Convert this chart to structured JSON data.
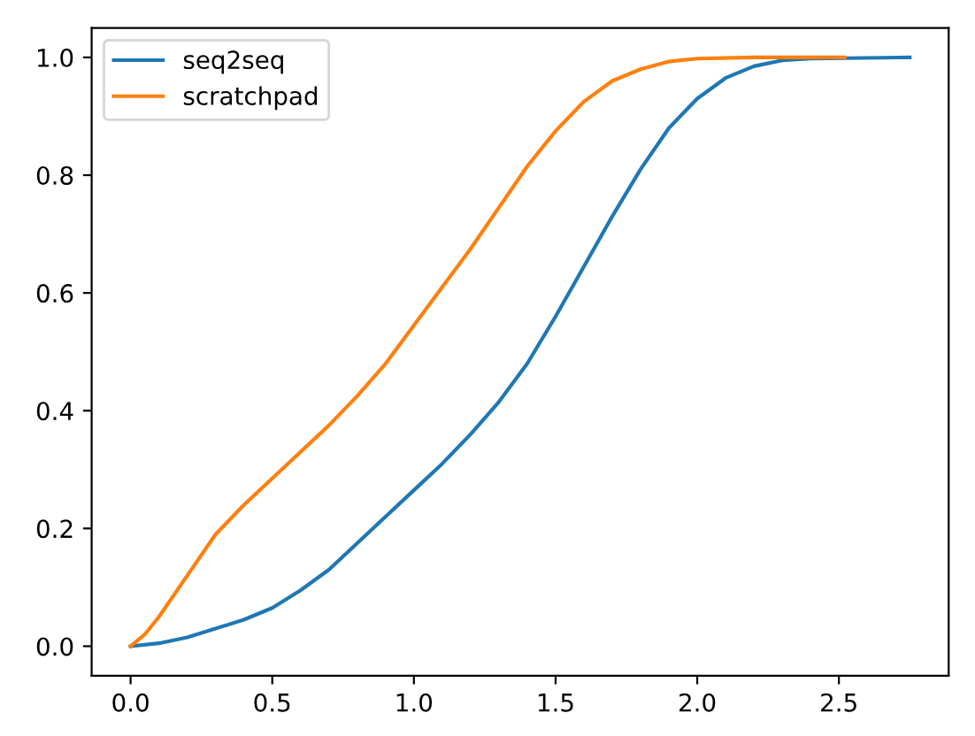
{
  "chart_data": {
    "type": "line",
    "xlim": [
      -0.1375,
      2.8875
    ],
    "ylim": [
      -0.05,
      1.05
    ],
    "xticks": [
      {
        "value": 0,
        "label": "0.0"
      },
      {
        "value": 0.5,
        "label": "0.5"
      },
      {
        "value": 1,
        "label": "1.0"
      },
      {
        "value": 1.5,
        "label": "1.5"
      },
      {
        "value": 2,
        "label": "2.0"
      },
      {
        "value": 2.5,
        "label": "2.5"
      }
    ],
    "yticks": [
      {
        "value": 0,
        "label": "0.0"
      },
      {
        "value": 0.2,
        "label": "0.2"
      },
      {
        "value": 0.4,
        "label": "0.4"
      },
      {
        "value": 0.6,
        "label": "0.6"
      },
      {
        "value": 0.8,
        "label": "0.8"
      },
      {
        "value": 1,
        "label": "1.0"
      }
    ],
    "legend": "top left",
    "grid": false,
    "series": [
      {
        "name": "seq2seq",
        "color": "#1f77b4",
        "x": [
          0,
          0.1,
          0.2,
          0.3,
          0.4,
          0.5,
          0.6,
          0.7,
          0.8,
          0.9,
          1.0,
          1.1,
          1.2,
          1.3,
          1.4,
          1.5,
          1.6,
          1.7,
          1.8,
          1.9,
          2.0,
          2.1,
          2.2,
          2.3,
          2.4,
          2.75
        ],
        "values": [
          0,
          0.005,
          0.015,
          0.03,
          0.045,
          0.065,
          0.095,
          0.13,
          0.175,
          0.22,
          0.265,
          0.31,
          0.36,
          0.415,
          0.48,
          0.56,
          0.645,
          0.73,
          0.81,
          0.88,
          0.93,
          0.965,
          0.985,
          0.995,
          0.998,
          1.0
        ]
      },
      {
        "name": "scratchpad",
        "color": "#ff7f0e",
        "x": [
          0,
          0.05,
          0.1,
          0.2,
          0.3,
          0.4,
          0.5,
          0.6,
          0.7,
          0.8,
          0.9,
          1.0,
          1.1,
          1.2,
          1.3,
          1.4,
          1.5,
          1.6,
          1.7,
          1.8,
          1.9,
          2.0,
          2.2,
          2.52
        ],
        "values": [
          0,
          0.02,
          0.05,
          0.12,
          0.19,
          0.24,
          0.285,
          0.33,
          0.375,
          0.425,
          0.48,
          0.545,
          0.61,
          0.675,
          0.745,
          0.815,
          0.875,
          0.925,
          0.96,
          0.98,
          0.993,
          0.998,
          1.0,
          1.0
        ]
      }
    ]
  }
}
